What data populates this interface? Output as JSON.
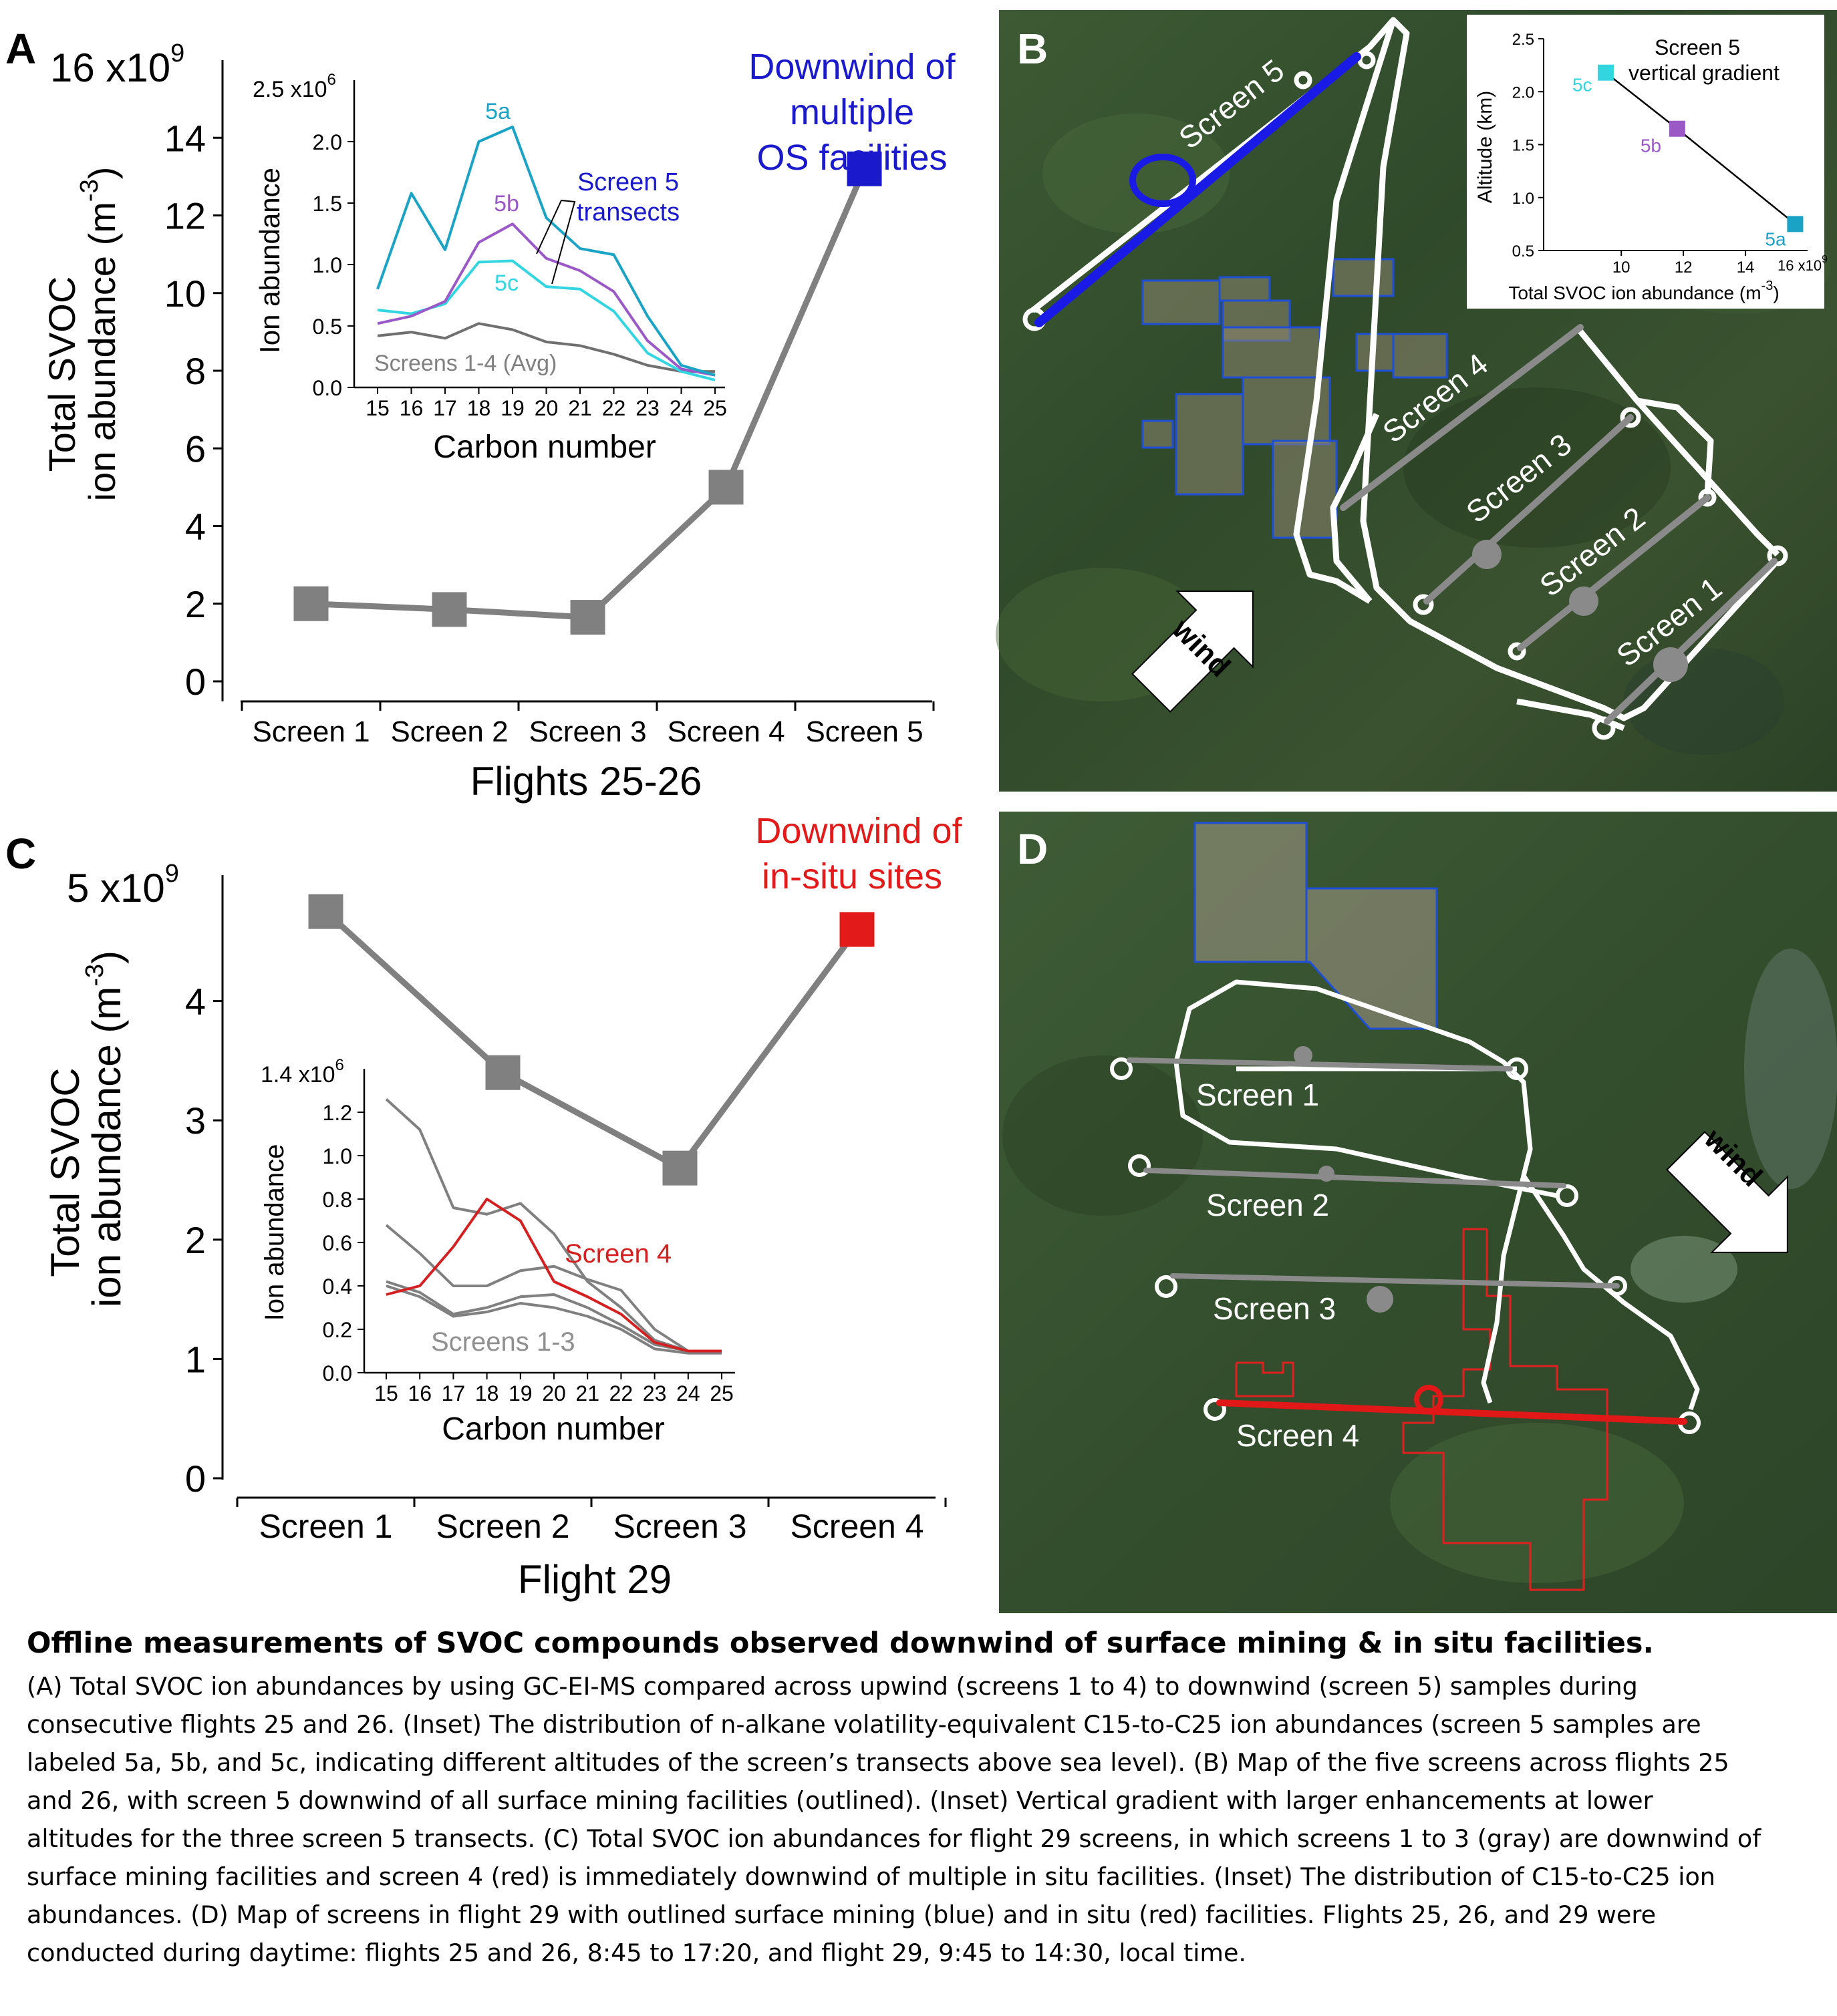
{
  "panels": {
    "A": {
      "letter": "A",
      "y_max_label": "16 x10",
      "y_exp": "9",
      "ylabel_line1": "Total SVOC",
      "ylabel_line2": "ion abundance (m",
      "ylabel_exp": "-3",
      "ylabel_close": ")",
      "xlabel": "Flights 25-26",
      "annotation": [
        "Downwind of",
        "multiple",
        "OS facilities"
      ],
      "annotation_color": "#1a1acc",
      "inset": {
        "y_max_label": "2.5 x10",
        "y_exp": "6",
        "ylabel": "Ion abundance",
        "xlabel": "Carbon number",
        "label_5a": "5a",
        "label_5b": "5b",
        "label_5c": "5c",
        "label_avg": "Screens 1-4 (Avg)",
        "label_transects": [
          "Screen 5",
          "transects"
        ]
      }
    },
    "B": {
      "letter": "B",
      "screen_labels": [
        "Screen 5",
        "Screen 4",
        "Screen 3",
        "Screen 2",
        "Screen 1"
      ],
      "wind_label": "wind",
      "inset": {
        "title": [
          "Screen 5",
          "vertical gradient"
        ],
        "ylabel": "Altitude (km)",
        "xlabel": "Total SVOC ion abundance (m",
        "xlabel_exp": "-3",
        "xlabel_close": ")",
        "x_max_label": "16 x10",
        "x_exp": "9"
      }
    },
    "C": {
      "letter": "C",
      "y_max_label": "5 x10",
      "y_exp": "9",
      "ylabel_line1": "Total SVOC",
      "ylabel_line2": "ion abundance (m",
      "ylabel_exp": "-3",
      "ylabel_close": ")",
      "xlabel": "Flight 29",
      "annotation": [
        "Downwind of",
        "in-situ sites"
      ],
      "annotation_color": "#e31a1a",
      "inset": {
        "y_max_label": "1.4 x10",
        "y_exp": "6",
        "ylabel": "Ion abundance",
        "xlabel": "Carbon number",
        "label_screen4": "Screen 4",
        "label_screens13": "Screens 1-3"
      }
    },
    "D": {
      "letter": "D",
      "screen_labels": [
        "Screen 1",
        "Screen 2",
        "Screen 3",
        "Screen 4"
      ],
      "wind_label": "wind"
    }
  },
  "chart_data": [
    {
      "id": "A",
      "type": "line",
      "categories": [
        "Screen 1",
        "Screen 2",
        "Screen 3",
        "Screen 4",
        "Screen 5"
      ],
      "values": [
        2000000000.0,
        1850000000.0,
        1650000000.0,
        5000000000.0,
        13200000000.0
      ],
      "point_colors": [
        "#808080",
        "#808080",
        "#808080",
        "#808080",
        "#1a1acc"
      ],
      "ylim": [
        0,
        16000000000.0
      ],
      "yticks": [
        "0",
        "2",
        "4",
        "6",
        "8",
        "10",
        "12",
        "14"
      ],
      "ytick_values": [
        0,
        2,
        4,
        6,
        8,
        10,
        12,
        14
      ]
    },
    {
      "id": "A-inset",
      "type": "line",
      "x": [
        15,
        16,
        17,
        18,
        19,
        20,
        21,
        22,
        23,
        24,
        25
      ],
      "xticks": [
        "15",
        "16",
        "17",
        "18",
        "19",
        "20",
        "21",
        "22",
        "23",
        "24",
        "25"
      ],
      "ylim": [
        0,
        2500000.0
      ],
      "yticks": [
        "0.0",
        "0.5",
        "1.0",
        "1.5",
        "2.0"
      ],
      "ytick_values": [
        0,
        0.5,
        1.0,
        1.5,
        2.0
      ],
      "series": [
        {
          "name": "5a",
          "color": "#1ba3c6",
          "values": [
            800000.0,
            1580000.0,
            1120000.0,
            2000000.0,
            2120000.0,
            1380000.0,
            1130000.0,
            1080000.0,
            580000.0,
            180000.0,
            100000.0
          ]
        },
        {
          "name": "5b",
          "color": "#9b59c7",
          "values": [
            520000.0,
            580000.0,
            700000.0,
            1180000.0,
            1330000.0,
            1050000.0,
            950000.0,
            780000.0,
            380000.0,
            150000.0,
            100000.0
          ]
        },
        {
          "name": "5c",
          "color": "#33d6e0",
          "values": [
            630000.0,
            600000.0,
            680000.0,
            1020000.0,
            1030000.0,
            820000.0,
            800000.0,
            620000.0,
            280000.0,
            130000.0,
            60000.0
          ]
        },
        {
          "name": "Screens 1-4 (Avg)",
          "color": "#707070",
          "values": [
            420000.0,
            450000.0,
            400000.0,
            520000.0,
            470000.0,
            370000.0,
            340000.0,
            270000.0,
            180000.0,
            130000.0,
            130000.0
          ]
        }
      ]
    },
    {
      "id": "B-inset",
      "type": "scatter",
      "points": [
        {
          "label": "5c",
          "x": 9500000000.0,
          "y": 2.18,
          "color": "#33d6e0"
        },
        {
          "label": "5b",
          "x": 11800000000.0,
          "y": 1.65,
          "color": "#9b59c7"
        },
        {
          "label": "5a",
          "x": 15600000000.0,
          "y": 0.75,
          "color": "#1ba3c6"
        }
      ],
      "xlim": [
        7500000000.0,
        16000000000.0
      ],
      "xticks": [
        "10",
        "12",
        "14"
      ],
      "xtick_values": [
        10,
        12,
        14
      ],
      "ylim": [
        0.5,
        2.5
      ],
      "yticks": [
        "0.5",
        "1.0",
        "1.5",
        "2.0",
        "2.5"
      ],
      "ytick_values": [
        0.5,
        1.0,
        1.5,
        2.0,
        2.5
      ]
    },
    {
      "id": "C",
      "type": "line",
      "categories": [
        "Screen 1",
        "Screen 2",
        "Screen 3",
        "Screen 4"
      ],
      "values": [
        4750000000.0,
        3400000000.0,
        2600000000.0,
        4600000000.0
      ],
      "point_colors": [
        "#808080",
        "#808080",
        "#808080",
        "#e31a1a"
      ],
      "ylim": [
        0,
        5000000000.0
      ],
      "yticks": [
        "0",
        "1",
        "2",
        "3",
        "4"
      ],
      "ytick_values": [
        0,
        1,
        2,
        3,
        4
      ]
    },
    {
      "id": "C-inset",
      "type": "line",
      "x": [
        15,
        16,
        17,
        18,
        19,
        20,
        21,
        22,
        23,
        24,
        25
      ],
      "xticks": [
        "15",
        "16",
        "17",
        "18",
        "19",
        "20",
        "21",
        "22",
        "23",
        "24",
        "25"
      ],
      "ylim": [
        0,
        1400000.0
      ],
      "yticks": [
        "0.0",
        "0.2",
        "0.4",
        "0.6",
        "0.8",
        "1.0",
        "1.2"
      ],
      "ytick_values": [
        0,
        0.2,
        0.4,
        0.6,
        0.8,
        1.0,
        1.2
      ],
      "series": [
        {
          "name": "Screen 4",
          "color": "#d42020",
          "values": [
            360000.0,
            400000.0,
            580000.0,
            800000.0,
            700000.0,
            420000.0,
            350000.0,
            270000.0,
            140000.0,
            100000.0,
            100000.0
          ]
        },
        {
          "color": "#808080",
          "values": [
            1260000.0,
            1120000.0,
            760000.0,
            730000.0,
            780000.0,
            640000.0,
            420000.0,
            300000.0,
            150000.0,
            100000.0,
            100000.0
          ]
        },
        {
          "color": "#808080",
          "values": [
            680000.0,
            550000.0,
            400000.0,
            400000.0,
            470000.0,
            490000.0,
            430000.0,
            380000.0,
            200000.0,
            100000.0,
            100000.0
          ]
        },
        {
          "color": "#808080",
          "values": [
            420000.0,
            370000.0,
            270000.0,
            300000.0,
            350000.0,
            360000.0,
            300000.0,
            220000.0,
            130000.0,
            100000.0,
            100000.0
          ]
        },
        {
          "color": "#808080",
          "values": [
            400000.0,
            350000.0,
            260000.0,
            280000.0,
            320000.0,
            300000.0,
            260000.0,
            200000.0,
            110000.0,
            90000.0,
            90000.0
          ]
        }
      ]
    }
  ],
  "caption": {
    "title": "Offline measurements of SVOC compounds observed downwind of surface mining & in situ facilities.",
    "lines": [
      "(A) Total SVOC ion abundances by using GC-EI-MS compared across upwind (screens 1 to 4) to downwind (screen 5) samples during",
      "consecutive flights 25 and 26. (Inset) The distribution of n-alkane volatility-equivalent C15-to-C25 ion abundances (screen 5 samples are",
      "labeled 5a, 5b, and 5c, indicating different altitudes of the screen’s transects above sea level). (B) Map of the five screens across flights 25",
      "and 26, with screen 5 downwind of all surface mining facilities (outlined). (Inset) Vertical gradient with larger enhancements at lower",
      "altitudes for the three screen 5 transects. (C) Total SVOC ion abundances for flight 29 screens, in which screens 1 to 3 (gray) are downwind of",
      "surface mining facilities and screen 4 (red) is immediately downwind of multiple in situ facilities. (Inset) The distribution of C15-to-C25 ion",
      "abundances. (D) Map of screens in flight 29 with outlined surface mining (blue) and in situ (red) facilities. Flights 25, 26, and 29 were",
      "conducted during daytime: flights 25 and 26, 8:45 to 17:20, and flight 29, 9:45 to 14:30, local time."
    ]
  }
}
